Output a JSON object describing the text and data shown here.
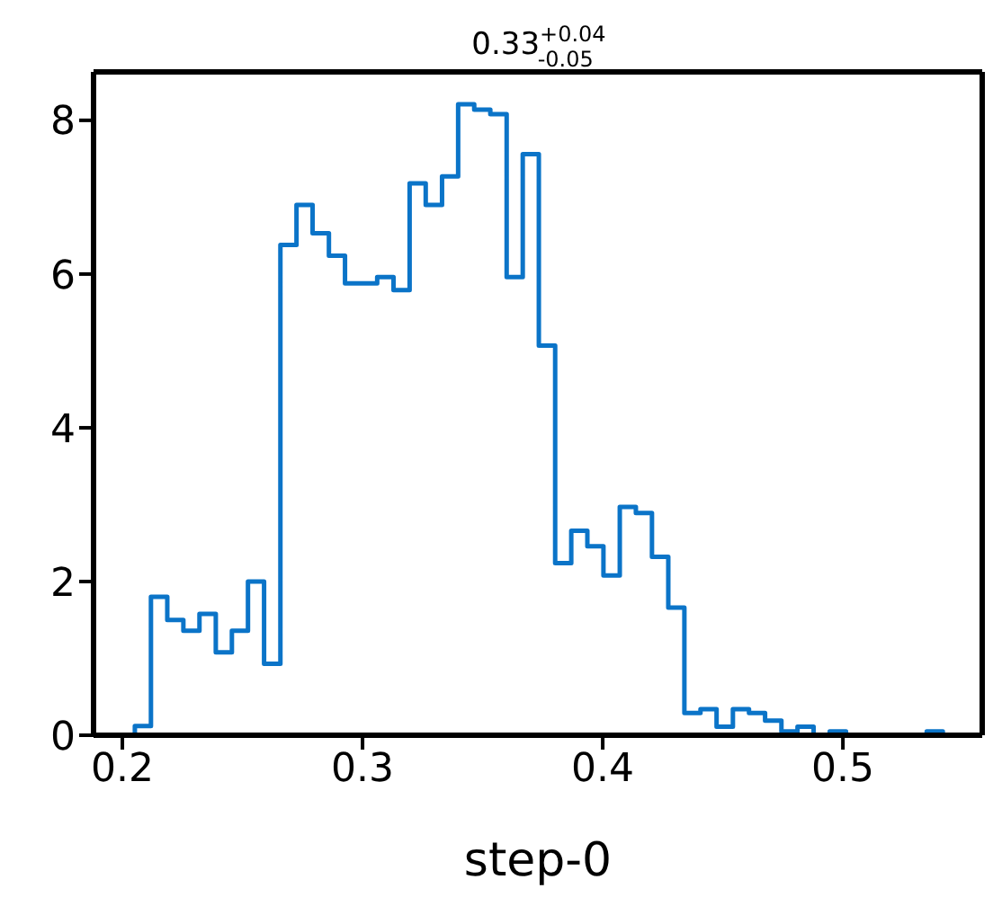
{
  "chart_data": {
    "type": "histogram",
    "title": "0.33$^{+0.04}$$_{-0.05}$",
    "xlabel": "step-0",
    "color": "#0b74c8",
    "bins": [
      0.2052,
      0.2119,
      0.2187,
      0.2254,
      0.2321,
      0.2389,
      0.2456,
      0.2523,
      0.259,
      0.2658,
      0.2725,
      0.2792,
      0.286,
      0.2927,
      0.2994,
      0.3061,
      0.3129,
      0.3196,
      0.3263,
      0.3331,
      0.3398,
      0.3465,
      0.3532,
      0.36,
      0.3667,
      0.3734,
      0.3802,
      0.3869,
      0.3936,
      0.4003,
      0.4071,
      0.4138,
      0.4205,
      0.4273,
      0.434,
      0.4407,
      0.4474,
      0.4542,
      0.4609,
      0.4676,
      0.4744,
      0.4811,
      0.4878,
      0.4945,
      0.5013,
      0.508,
      0.5147,
      0.5215,
      0.5282,
      0.5349,
      0.5416
    ],
    "values": [
      0.12,
      1.8,
      1.5,
      1.36,
      1.58,
      1.08,
      1.36,
      2.0,
      0.93,
      6.38,
      6.9,
      6.53,
      6.24,
      5.88,
      5.88,
      5.96,
      5.79,
      7.18,
      6.9,
      7.27,
      8.21,
      8.14,
      8.08,
      5.96,
      7.56,
      5.07,
      2.24,
      2.66,
      2.46,
      2.08,
      2.97,
      2.89,
      2.32,
      1.66,
      0.29,
      0.34,
      0.11,
      0.34,
      0.29,
      0.19,
      0.05,
      0.11,
      0,
      0.05,
      0,
      0,
      0,
      0,
      0,
      0.05
    ],
    "xlim": [
      0.188,
      0.558
    ],
    "xticks": [
      0.2,
      0.3,
      0.4,
      0.5
    ],
    "ylim": [
      0,
      8.63
    ],
    "yticks": [
      0,
      2,
      4,
      6,
      8
    ],
    "grid": false
  }
}
